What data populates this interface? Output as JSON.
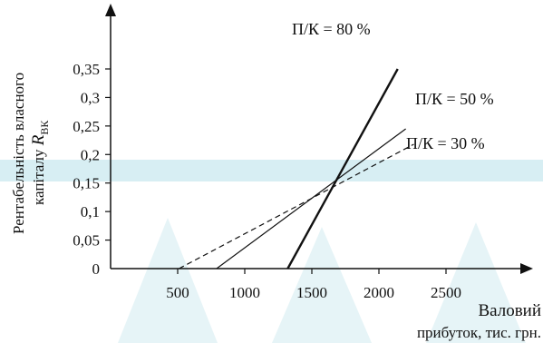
{
  "chart_data": {
    "type": "line",
    "xlabel_line1": "Валовий",
    "xlabel_line2": "прибуток, тис. грн.",
    "ylabel_line1": "Рентабельність власного",
    "ylabel_line2_text": "капіталу ",
    "ylabel_var": "R",
    "ylabel_sub": "ВК",
    "xlim": [
      0,
      2800
    ],
    "ylim": [
      0,
      0.375
    ],
    "x_ticks": [
      {
        "value": 500,
        "label": "500"
      },
      {
        "value": 1000,
        "label": "1000"
      },
      {
        "value": 1500,
        "label": "1500"
      },
      {
        "value": 2000,
        "label": "2000"
      },
      {
        "value": 2500,
        "label": "2500"
      }
    ],
    "y_ticks": [
      {
        "value": 0,
        "label": "0"
      },
      {
        "value": 0.05,
        "label": "0,05"
      },
      {
        "value": 0.1,
        "label": "0,1"
      },
      {
        "value": 0.15,
        "label": "0,15"
      },
      {
        "value": 0.2,
        "label": "0,2"
      },
      {
        "value": 0.25,
        "label": "0,25"
      },
      {
        "value": 0.3,
        "label": "0,3"
      },
      {
        "value": 0.35,
        "label": "0,35"
      }
    ],
    "series": [
      {
        "name": "П/К = 80 %",
        "style": "solid-bold",
        "points": [
          [
            1320,
            0
          ],
          [
            2140,
            0.35
          ]
        ]
      },
      {
        "name": "П/К = 50 %",
        "style": "solid",
        "points": [
          [
            790,
            0
          ],
          [
            2200,
            0.245
          ]
        ]
      },
      {
        "name": "П/К = 30 %",
        "style": "dashed",
        "points": [
          [
            510,
            0
          ],
          [
            2260,
            0.218
          ]
        ]
      }
    ],
    "grid": false
  }
}
